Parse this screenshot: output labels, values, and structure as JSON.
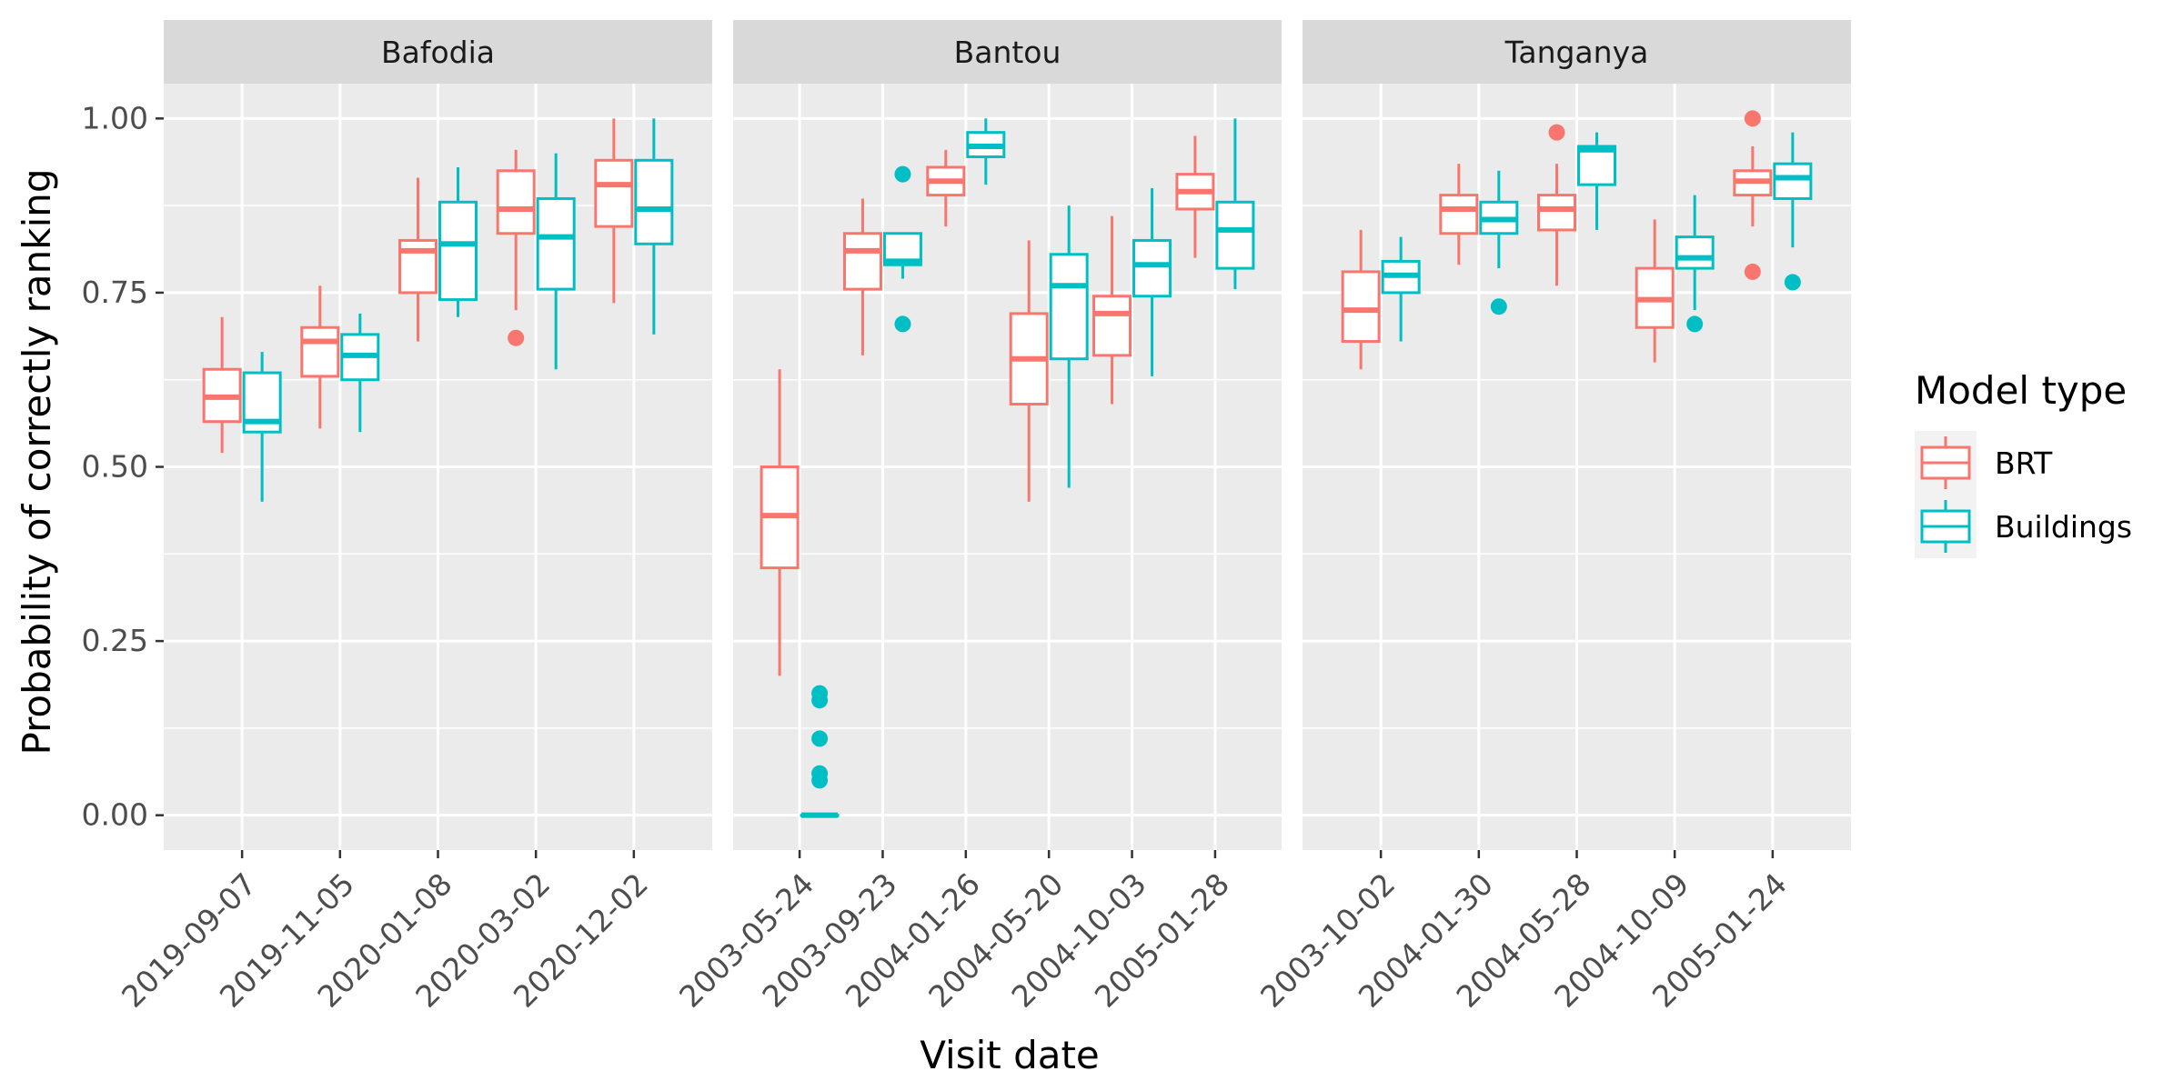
{
  "chart_data": {
    "type": "boxplot",
    "xlabel": "Visit date",
    "ylabel": "Probability of correctly ranking",
    "ylim": [
      -0.05,
      1.05
    ],
    "y_ticks": [
      0,
      0.25,
      0.5,
      0.75,
      1
    ],
    "y_tick_labels": [
      "0.00",
      "0.25",
      "0.50",
      "0.75",
      "1.00"
    ],
    "grid": true,
    "legend": {
      "title": "Model type",
      "position": "right",
      "entries": [
        {
          "name": "BRT",
          "color": "#F8766D"
        },
        {
          "name": "Buildings",
          "color": "#00BFC4"
        }
      ]
    },
    "facets": [
      {
        "name": "Bafodia",
        "categories": [
          "2019-09-07",
          "2019-11-05",
          "2020-01-08",
          "2020-03-02",
          "2020-12-02"
        ],
        "series": [
          {
            "name": "BRT",
            "boxes": [
              {
                "lower": 0.52,
                "q1": 0.565,
                "median": 0.6,
                "q3": 0.64,
                "upper": 0.715,
                "outliers": []
              },
              {
                "lower": 0.555,
                "q1": 0.63,
                "median": 0.68,
                "q3": 0.7,
                "upper": 0.76,
                "outliers": []
              },
              {
                "lower": 0.68,
                "q1": 0.75,
                "median": 0.81,
                "q3": 0.825,
                "upper": 0.915,
                "outliers": []
              },
              {
                "lower": 0.725,
                "q1": 0.835,
                "median": 0.87,
                "q3": 0.925,
                "upper": 0.955,
                "outliers": [
                  0.685
                ]
              },
              {
                "lower": 0.735,
                "q1": 0.845,
                "median": 0.905,
                "q3": 0.94,
                "upper": 1.0,
                "outliers": []
              }
            ]
          },
          {
            "name": "Buildings",
            "boxes": [
              {
                "lower": 0.45,
                "q1": 0.55,
                "median": 0.565,
                "q3": 0.635,
                "upper": 0.665,
                "outliers": []
              },
              {
                "lower": 0.55,
                "q1": 0.625,
                "median": 0.66,
                "q3": 0.69,
                "upper": 0.72,
                "outliers": []
              },
              {
                "lower": 0.715,
                "q1": 0.74,
                "median": 0.82,
                "q3": 0.88,
                "upper": 0.93,
                "outliers": []
              },
              {
                "lower": 0.64,
                "q1": 0.755,
                "median": 0.83,
                "q3": 0.885,
                "upper": 0.95,
                "outliers": []
              },
              {
                "lower": 0.69,
                "q1": 0.82,
                "median": 0.87,
                "q3": 0.94,
                "upper": 1.0,
                "outliers": []
              }
            ]
          }
        ]
      },
      {
        "name": "Bantou",
        "categories": [
          "2003-05-24",
          "2003-09-23",
          "2004-01-26",
          "2004-05-20",
          "2004-10-03",
          "2005-01-28"
        ],
        "series": [
          {
            "name": "BRT",
            "boxes": [
              {
                "lower": 0.2,
                "q1": 0.355,
                "median": 0.43,
                "q3": 0.5,
                "upper": 0.64,
                "outliers": []
              },
              {
                "lower": 0.66,
                "q1": 0.755,
                "median": 0.81,
                "q3": 0.835,
                "upper": 0.885,
                "outliers": []
              },
              {
                "lower": 0.845,
                "q1": 0.89,
                "median": 0.91,
                "q3": 0.93,
                "upper": 0.955,
                "outliers": []
              },
              {
                "lower": 0.45,
                "q1": 0.59,
                "median": 0.655,
                "q3": 0.72,
                "upper": 0.825,
                "outliers": []
              },
              {
                "lower": 0.59,
                "q1": 0.66,
                "median": 0.72,
                "q3": 0.745,
                "upper": 0.86,
                "outliers": []
              },
              {
                "lower": 0.8,
                "q1": 0.87,
                "median": 0.895,
                "q3": 0.92,
                "upper": 0.975,
                "outliers": []
              }
            ]
          },
          {
            "name": "Buildings",
            "boxes": [
              {
                "lower": 0.0,
                "q1": 0.0,
                "median": 0.0,
                "q3": 0.0,
                "upper": 0.0,
                "outliers": [
                  0.05,
                  0.06,
                  0.11,
                  0.165,
                  0.175
                ]
              },
              {
                "lower": 0.77,
                "q1": 0.79,
                "median": 0.795,
                "q3": 0.835,
                "upper": 0.835,
                "outliers": [
                  0.705,
                  0.92
                ]
              },
              {
                "lower": 0.905,
                "q1": 0.945,
                "median": 0.96,
                "q3": 0.98,
                "upper": 1.0,
                "outliers": []
              },
              {
                "lower": 0.47,
                "q1": 0.655,
                "median": 0.76,
                "q3": 0.805,
                "upper": 0.875,
                "outliers": []
              },
              {
                "lower": 0.63,
                "q1": 0.745,
                "median": 0.79,
                "q3": 0.825,
                "upper": 0.9,
                "outliers": []
              },
              {
                "lower": 0.755,
                "q1": 0.785,
                "median": 0.84,
                "q3": 0.88,
                "upper": 1.0,
                "outliers": []
              }
            ]
          }
        ]
      },
      {
        "name": "Tanganya",
        "categories": [
          "2003-10-02",
          "2004-01-30",
          "2004-05-28",
          "2004-10-09",
          "2005-01-24"
        ],
        "series": [
          {
            "name": "BRT",
            "boxes": [
              {
                "lower": 0.64,
                "q1": 0.68,
                "median": 0.725,
                "q3": 0.78,
                "upper": 0.84,
                "outliers": []
              },
              {
                "lower": 0.79,
                "q1": 0.835,
                "median": 0.87,
                "q3": 0.89,
                "upper": 0.935,
                "outliers": []
              },
              {
                "lower": 0.76,
                "q1": 0.84,
                "median": 0.87,
                "q3": 0.89,
                "upper": 0.935,
                "outliers": [
                  0.98
                ]
              },
              {
                "lower": 0.65,
                "q1": 0.7,
                "median": 0.74,
                "q3": 0.785,
                "upper": 0.855,
                "outliers": []
              },
              {
                "lower": 0.845,
                "q1": 0.89,
                "median": 0.91,
                "q3": 0.925,
                "upper": 0.96,
                "outliers": [
                  0.78,
                  1.0
                ]
              }
            ]
          },
          {
            "name": "Buildings",
            "boxes": [
              {
                "lower": 0.68,
                "q1": 0.75,
                "median": 0.775,
                "q3": 0.795,
                "upper": 0.83,
                "outliers": []
              },
              {
                "lower": 0.785,
                "q1": 0.835,
                "median": 0.855,
                "q3": 0.88,
                "upper": 0.925,
                "outliers": [
                  0.73
                ]
              },
              {
                "lower": 0.84,
                "q1": 0.905,
                "median": 0.955,
                "q3": 0.96,
                "upper": 0.98,
                "outliers": []
              },
              {
                "lower": 0.725,
                "q1": 0.785,
                "median": 0.8,
                "q3": 0.83,
                "upper": 0.89,
                "outliers": [
                  0.705
                ]
              },
              {
                "lower": 0.815,
                "q1": 0.885,
                "median": 0.915,
                "q3": 0.935,
                "upper": 0.98,
                "outliers": [
                  0.765
                ]
              }
            ]
          }
        ]
      }
    ]
  }
}
